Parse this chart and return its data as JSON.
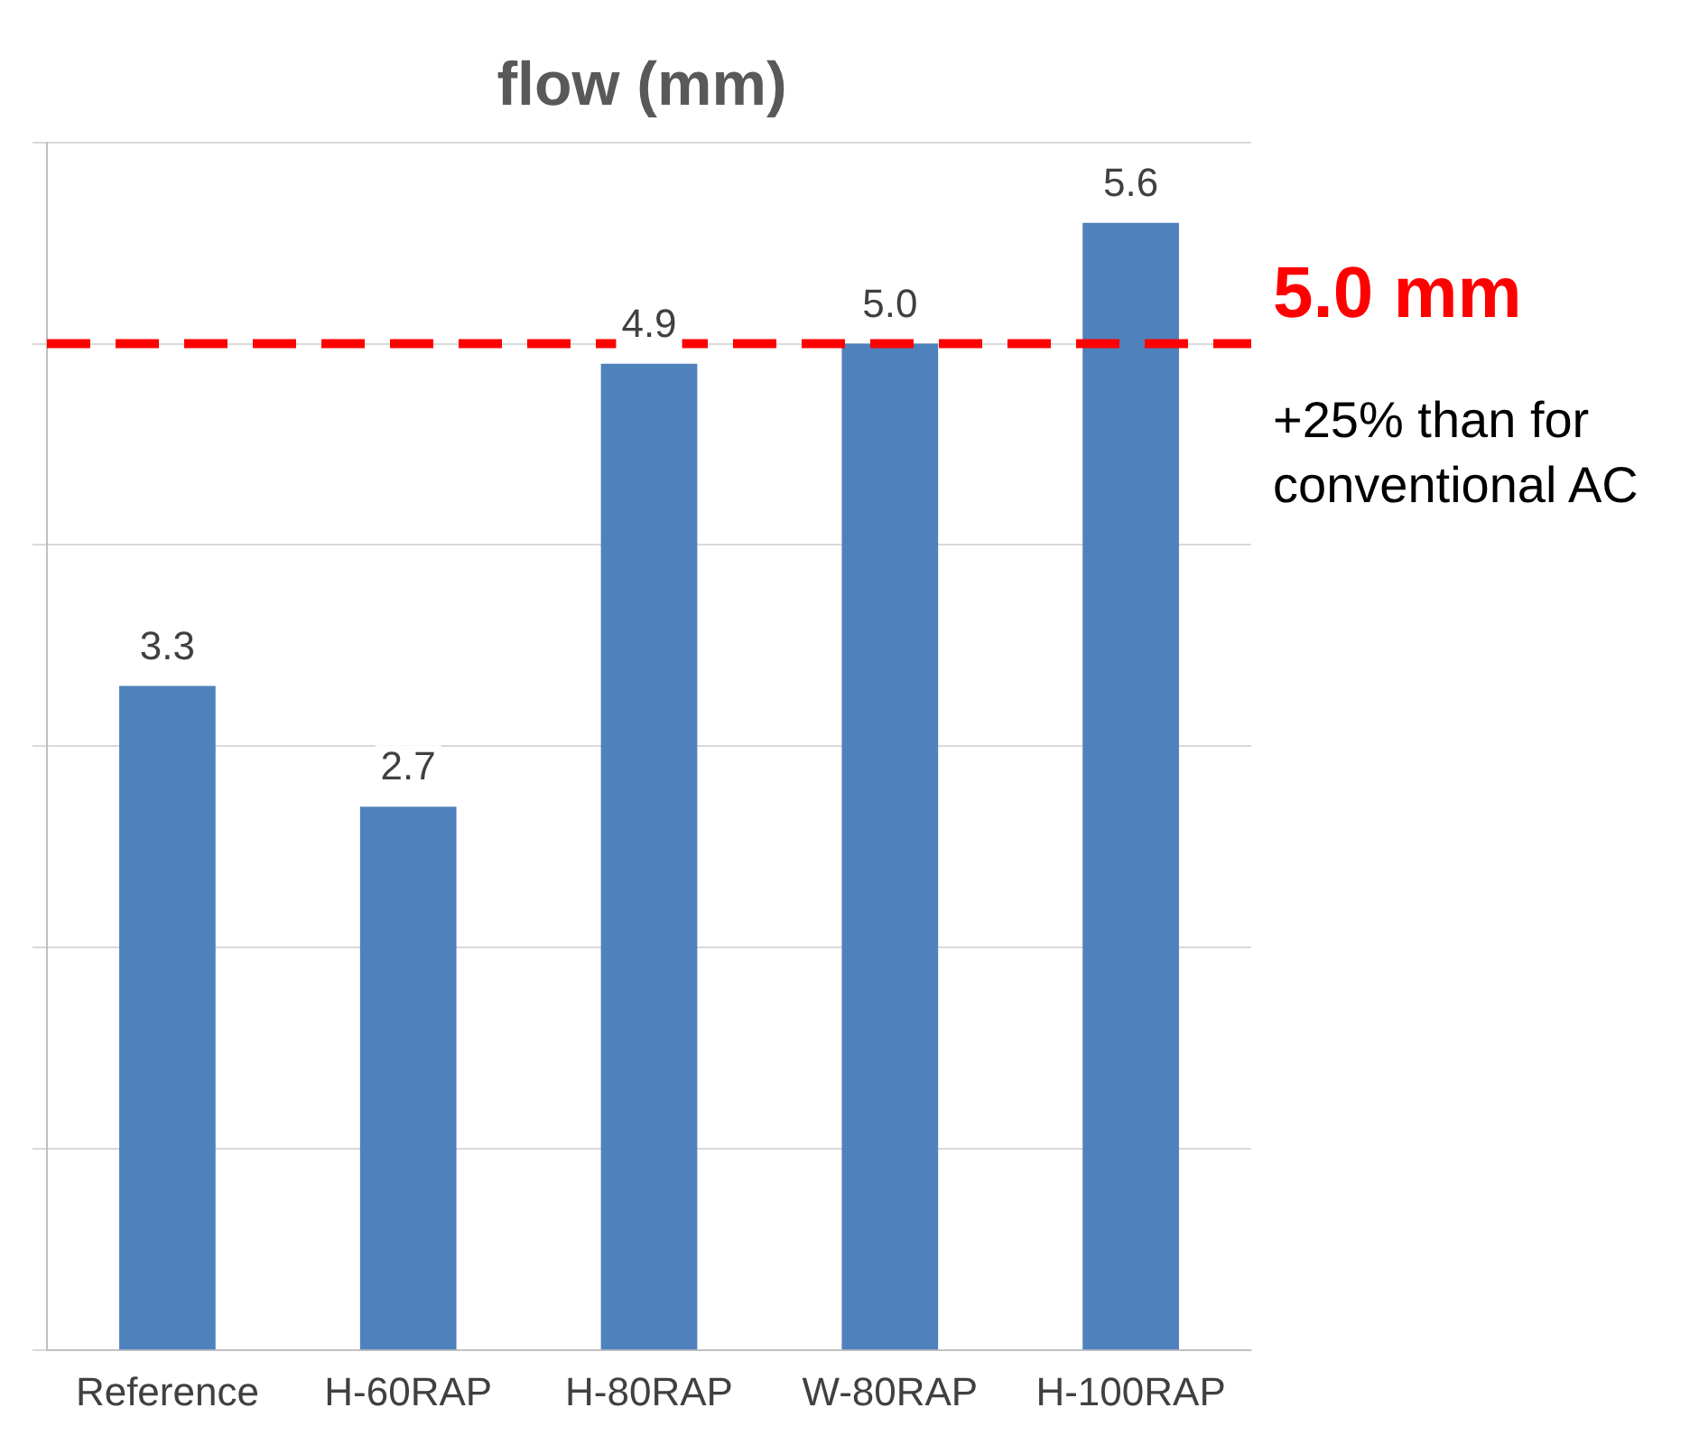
{
  "chart_data": {
    "type": "bar",
    "title": "flow (mm)",
    "categories": [
      "Reference",
      "H-60RAP",
      "H-80RAP",
      "W-80RAP",
      "H-100RAP"
    ],
    "values": [
      3.3,
      2.7,
      4.9,
      5.0,
      5.6
    ],
    "color": "#4f81bd",
    "value_labels": [
      "3.3",
      "2.7",
      "4.9",
      "5.0",
      "5.6"
    ],
    "ylim": [
      0,
      6
    ],
    "yticks": [
      {
        "value": 0,
        "label": null
      },
      {
        "value": 1,
        "label": null
      },
      {
        "value": 2,
        "label": null
      },
      {
        "value": 3,
        "label": null
      },
      {
        "value": 4,
        "label": null
      },
      {
        "value": 5,
        "label": null
      },
      {
        "value": 6,
        "label": null
      }
    ],
    "tick_labels": "x",
    "grid": "y",
    "legend": false,
    "ref_lines": [
      {
        "axis": "y",
        "value": 5.0,
        "label": "5.0 mm",
        "color": "#ff0000",
        "line_style": "dashed"
      }
    ],
    "annotations": [
      "+25% than for conventional AC"
    ]
  }
}
